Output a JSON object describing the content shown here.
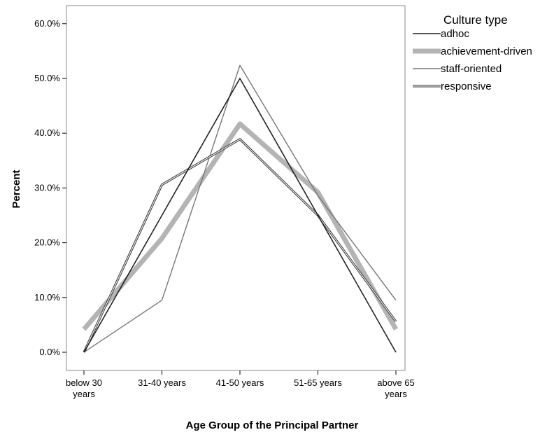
{
  "chart_data": {
    "type": "line",
    "xlabel": "Age Group of the Principal Partner",
    "ylabel": "Percent",
    "categories": [
      "below 30 years",
      "31-40 years",
      "41-50 years",
      "51-65 years",
      "above 65 years"
    ],
    "category_lines": [
      [
        "below 30",
        "years"
      ],
      [
        "31-40 years"
      ],
      [
        "41-50 years"
      ],
      [
        "51-65 years"
      ],
      [
        "above 65",
        "years"
      ]
    ],
    "ylim": [
      0,
      63
    ],
    "yticks": [
      0,
      10,
      20,
      30,
      40,
      50,
      60
    ],
    "ytick_labels": [
      "0.0%",
      "10.0%",
      "20.0%",
      "30.0%",
      "40.0%",
      "50.0%",
      "60.0%"
    ],
    "grid": false,
    "legend": {
      "title": "Culture type",
      "position": "top-right"
    },
    "series": [
      {
        "name": "adhoc",
        "values": [
          0.0,
          25.0,
          50.0,
          25.0,
          0.0
        ],
        "color": "#222222",
        "style": "solid-thin"
      },
      {
        "name": "achievement-driven",
        "values": [
          4.2,
          20.8,
          41.7,
          29.2,
          4.2
        ],
        "color": "#b4b4b4",
        "style": "thick"
      },
      {
        "name": "staff-oriented",
        "values": [
          0.0,
          9.5,
          52.4,
          28.6,
          9.5
        ],
        "color": "#777777",
        "style": "thin"
      },
      {
        "name": "responsive",
        "values": [
          0.0,
          30.6,
          38.9,
          25.0,
          5.6
        ],
        "color": "#444444",
        "style": "double"
      }
    ]
  }
}
